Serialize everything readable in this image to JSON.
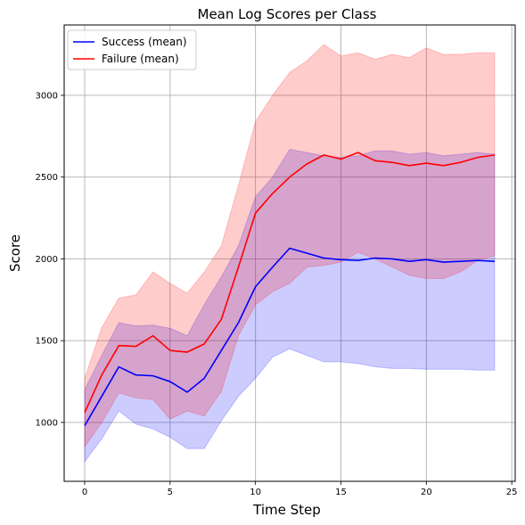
{
  "chart_data": {
    "type": "line",
    "title": "Mean Log Scores per Class",
    "xlabel": "Time Step",
    "ylabel": "Score",
    "xlim": [
      -1.2,
      25.2
    ],
    "ylim": [
      640,
      3430
    ],
    "xticks": [
      0,
      5,
      10,
      15,
      20,
      25
    ],
    "yticks": [
      1000,
      1500,
      2000,
      2500,
      3000
    ],
    "grid": true,
    "legend_position": "top-left",
    "x": [
      0,
      1,
      2,
      3,
      4,
      5,
      6,
      7,
      8,
      9,
      10,
      11,
      12,
      13,
      14,
      15,
      16,
      17,
      18,
      19,
      20,
      21,
      22,
      23,
      24
    ],
    "series": [
      {
        "name": "Success (mean)",
        "color": "#0000ff",
        "fill_color": "#0000ff",
        "values": [
          980,
          1160,
          1340,
          1290,
          1285,
          1250,
          1185,
          1270,
          1440,
          1610,
          1830,
          1950,
          2065,
          2035,
          2005,
          1995,
          1990,
          2005,
          2000,
          1985,
          1995,
          1980,
          1985,
          1990,
          1985
        ],
        "lower": [
          760,
          900,
          1070,
          990,
          960,
          910,
          840,
          840,
          1010,
          1160,
          1270,
          1400,
          1450,
          1410,
          1370,
          1370,
          1360,
          1340,
          1330,
          1330,
          1325,
          1325,
          1325,
          1320,
          1320
        ],
        "upper": [
          1200,
          1410,
          1610,
          1590,
          1595,
          1575,
          1530,
          1720,
          1890,
          2080,
          2380,
          2500,
          2670,
          2650,
          2630,
          2620,
          2630,
          2660,
          2660,
          2640,
          2650,
          2630,
          2640,
          2650,
          2640
        ]
      },
      {
        "name": "Failure (mean)",
        "color": "#ff0000",
        "fill_color": "#ff0000",
        "values": [
          1060,
          1290,
          1470,
          1465,
          1530,
          1440,
          1430,
          1480,
          1630,
          1950,
          2280,
          2400,
          2500,
          2580,
          2635,
          2610,
          2650,
          2600,
          2590,
          2570,
          2585,
          2570,
          2590,
          2620,
          2635
        ],
        "lower": [
          850,
          1000,
          1180,
          1150,
          1140,
          1020,
          1070,
          1040,
          1190,
          1530,
          1720,
          1800,
          1850,
          1950,
          1960,
          1980,
          2040,
          2000,
          1950,
          1900,
          1880,
          1880,
          1920,
          1990,
          2020
        ],
        "upper": [
          1270,
          1580,
          1760,
          1780,
          1920,
          1850,
          1790,
          1920,
          2080,
          2450,
          2840,
          3000,
          3140,
          3210,
          3310,
          3240,
          3260,
          3220,
          3250,
          3230,
          3290,
          3250,
          3250,
          3260,
          3260
        ]
      }
    ]
  }
}
